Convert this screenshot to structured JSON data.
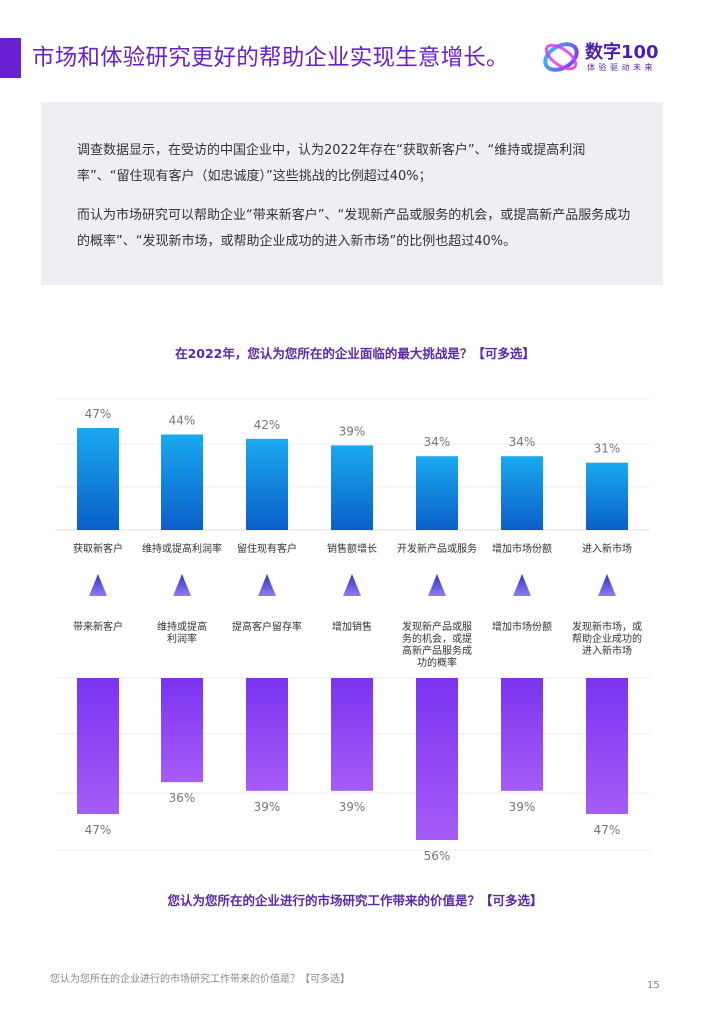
{
  "header": {
    "title": "市场和体验研究更好的帮助企业实现生意增长。",
    "logo_name": "数字100",
    "logo_tagline": "体验驱动未来"
  },
  "summary": {
    "paragraph1": "调查数据显示，在受访的中国企业中，认为2022年存在“获取新客户”、“维持或提高利润率”、“留住现有客户（如忠诚度）”这些挑战的比例超过40%；",
    "paragraph2": "而认为市场研究可以帮助企业“带来新客户”、“发现新产品或服务的机会，或提高新产品服务成功的概率”、“发现新市场，或帮助企业成功的进入新市场”的比例也超过40%。"
  },
  "chart_data": [
    {
      "type": "bar",
      "title": "在2022年，您认为您所在的企业面临的最大挑战是？【可多选】",
      "categories": [
        "获取新客户",
        "维持或提高利润率",
        "留住现有客户",
        "销售额增长",
        "开发新产品或服务",
        "增加市场份额",
        "进入新市场"
      ],
      "values": [
        47,
        44,
        42,
        39,
        34,
        34,
        31
      ],
      "unit": "%",
      "colors": {
        "top": "#1aa9f0",
        "bottom": "#0a5fc8"
      }
    },
    {
      "type": "bar",
      "orientation": "downward",
      "title": "您认为您所在的企业进行的市场研究工作带来的价值是？【可多选】",
      "categories": [
        "带来新客户",
        "维持或提高利润率",
        "提高客户留存率",
        "增加销售",
        "发现新产品或服务的机会，或提高新产品服务成功的概率",
        "增加市场份额",
        "发现新市场，或帮助企业成功的进入新市场"
      ],
      "category_lines": [
        [
          "带来新客户"
        ],
        [
          "维持或提高",
          "利润率"
        ],
        [
          "提高客户留存率"
        ],
        [
          "增加销售"
        ],
        [
          "发现新产品或服",
          "务的机会，或提",
          "高新产品服务成",
          "功的概率"
        ],
        [
          "增加市场份额"
        ],
        [
          "发现新市场，或",
          "帮助企业成功的",
          "进入新市场"
        ]
      ],
      "values": [
        47,
        36,
        39,
        39,
        56,
        39,
        47
      ],
      "unit": "%",
      "colors": {
        "top": "#7b33f0",
        "bottom": "#a55cf7"
      }
    }
  ],
  "colors": {
    "accent": "#6a1fd0",
    "arrow": "#3a2fc8"
  },
  "footer": {
    "note": "您认为您所在的企业进行的市场研究工作带来的价值是？【可多选】",
    "page_number": "15"
  }
}
